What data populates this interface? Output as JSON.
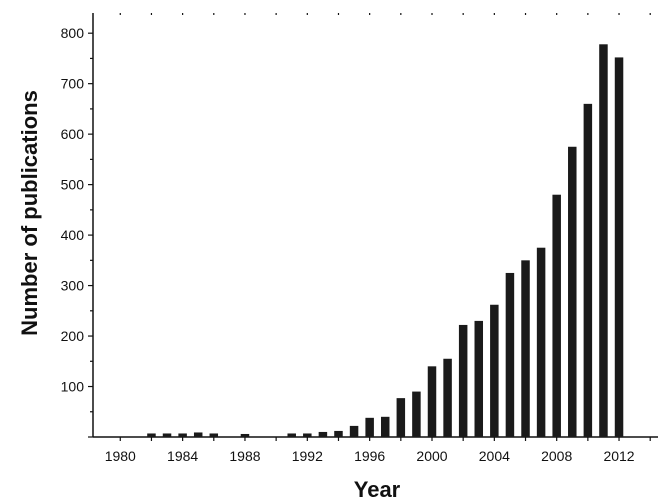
{
  "chart_data": {
    "type": "bar",
    "xlabel": "Year",
    "ylabel": "Number of publications",
    "x": [
      1982,
      1983,
      1984,
      1985,
      1986,
      1988,
      1991,
      1992,
      1993,
      1994,
      1995,
      1996,
      1997,
      1998,
      1999,
      2000,
      2001,
      2002,
      2003,
      2004,
      2005,
      2006,
      2007,
      2008,
      2009,
      2010,
      2011,
      2012
    ],
    "values": [
      7,
      7,
      7,
      9,
      7,
      6,
      7,
      7,
      10,
      12,
      22,
      38,
      40,
      77,
      90,
      140,
      155,
      222,
      230,
      262,
      325,
      350,
      375,
      480,
      575,
      660,
      778,
      752
    ],
    "xlim": [
      1978.25,
      2014.5
    ],
    "ylim": [
      0,
      840
    ],
    "xticks": [
      "1980",
      "1984",
      "1988",
      "1992",
      "1996",
      "2000",
      "2004",
      "2008",
      "2012"
    ],
    "yticks": [
      "100",
      "200",
      "300",
      "400",
      "500",
      "600",
      "700",
      "800"
    ],
    "bar_color": "#1a1a1a",
    "grid": false,
    "legend": "none"
  }
}
